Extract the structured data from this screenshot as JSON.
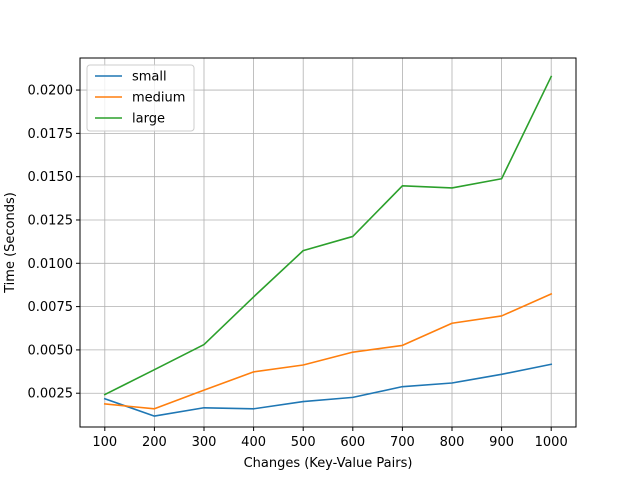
{
  "chart_data": {
    "type": "line",
    "title": "",
    "xlabel": "Changes (Key-Value Pairs)",
    "ylabel": "Time (Seconds)",
    "x": [
      100,
      200,
      300,
      400,
      500,
      600,
      700,
      800,
      900,
      1000
    ],
    "xticks": [
      "100",
      "200",
      "300",
      "400",
      "500",
      "600",
      "700",
      "800",
      "900",
      "1000"
    ],
    "yticks": [
      0.0025,
      0.005,
      0.0075,
      0.01,
      0.0125,
      0.015,
      0.0175,
      0.02
    ],
    "ytick_labels": [
      "0.0025",
      "0.0050",
      "0.0075",
      "0.0100",
      "0.0125",
      "0.0150",
      "0.0175",
      "0.0200"
    ],
    "xlim": [
      50,
      1050
    ],
    "ylim": [
      0.00055,
      0.02185
    ],
    "grid": true,
    "legend_position": "upper-left",
    "series": [
      {
        "name": "small",
        "color": "#1f77b4",
        "values": [
          0.00218,
          0.00118,
          0.00166,
          0.0016,
          0.00202,
          0.00226,
          0.00288,
          0.00309,
          0.00359,
          0.00417
        ]
      },
      {
        "name": "medium",
        "color": "#ff7f0e",
        "values": [
          0.00188,
          0.0016,
          0.00268,
          0.00373,
          0.00413,
          0.00487,
          0.00526,
          0.00654,
          0.00696,
          0.00823
        ]
      },
      {
        "name": "large",
        "color": "#2ca02c",
        "values": [
          0.00242,
          0.00386,
          0.00531,
          0.00806,
          0.01073,
          0.01155,
          0.01447,
          0.01435,
          0.01488,
          0.02078
        ]
      }
    ]
  }
}
